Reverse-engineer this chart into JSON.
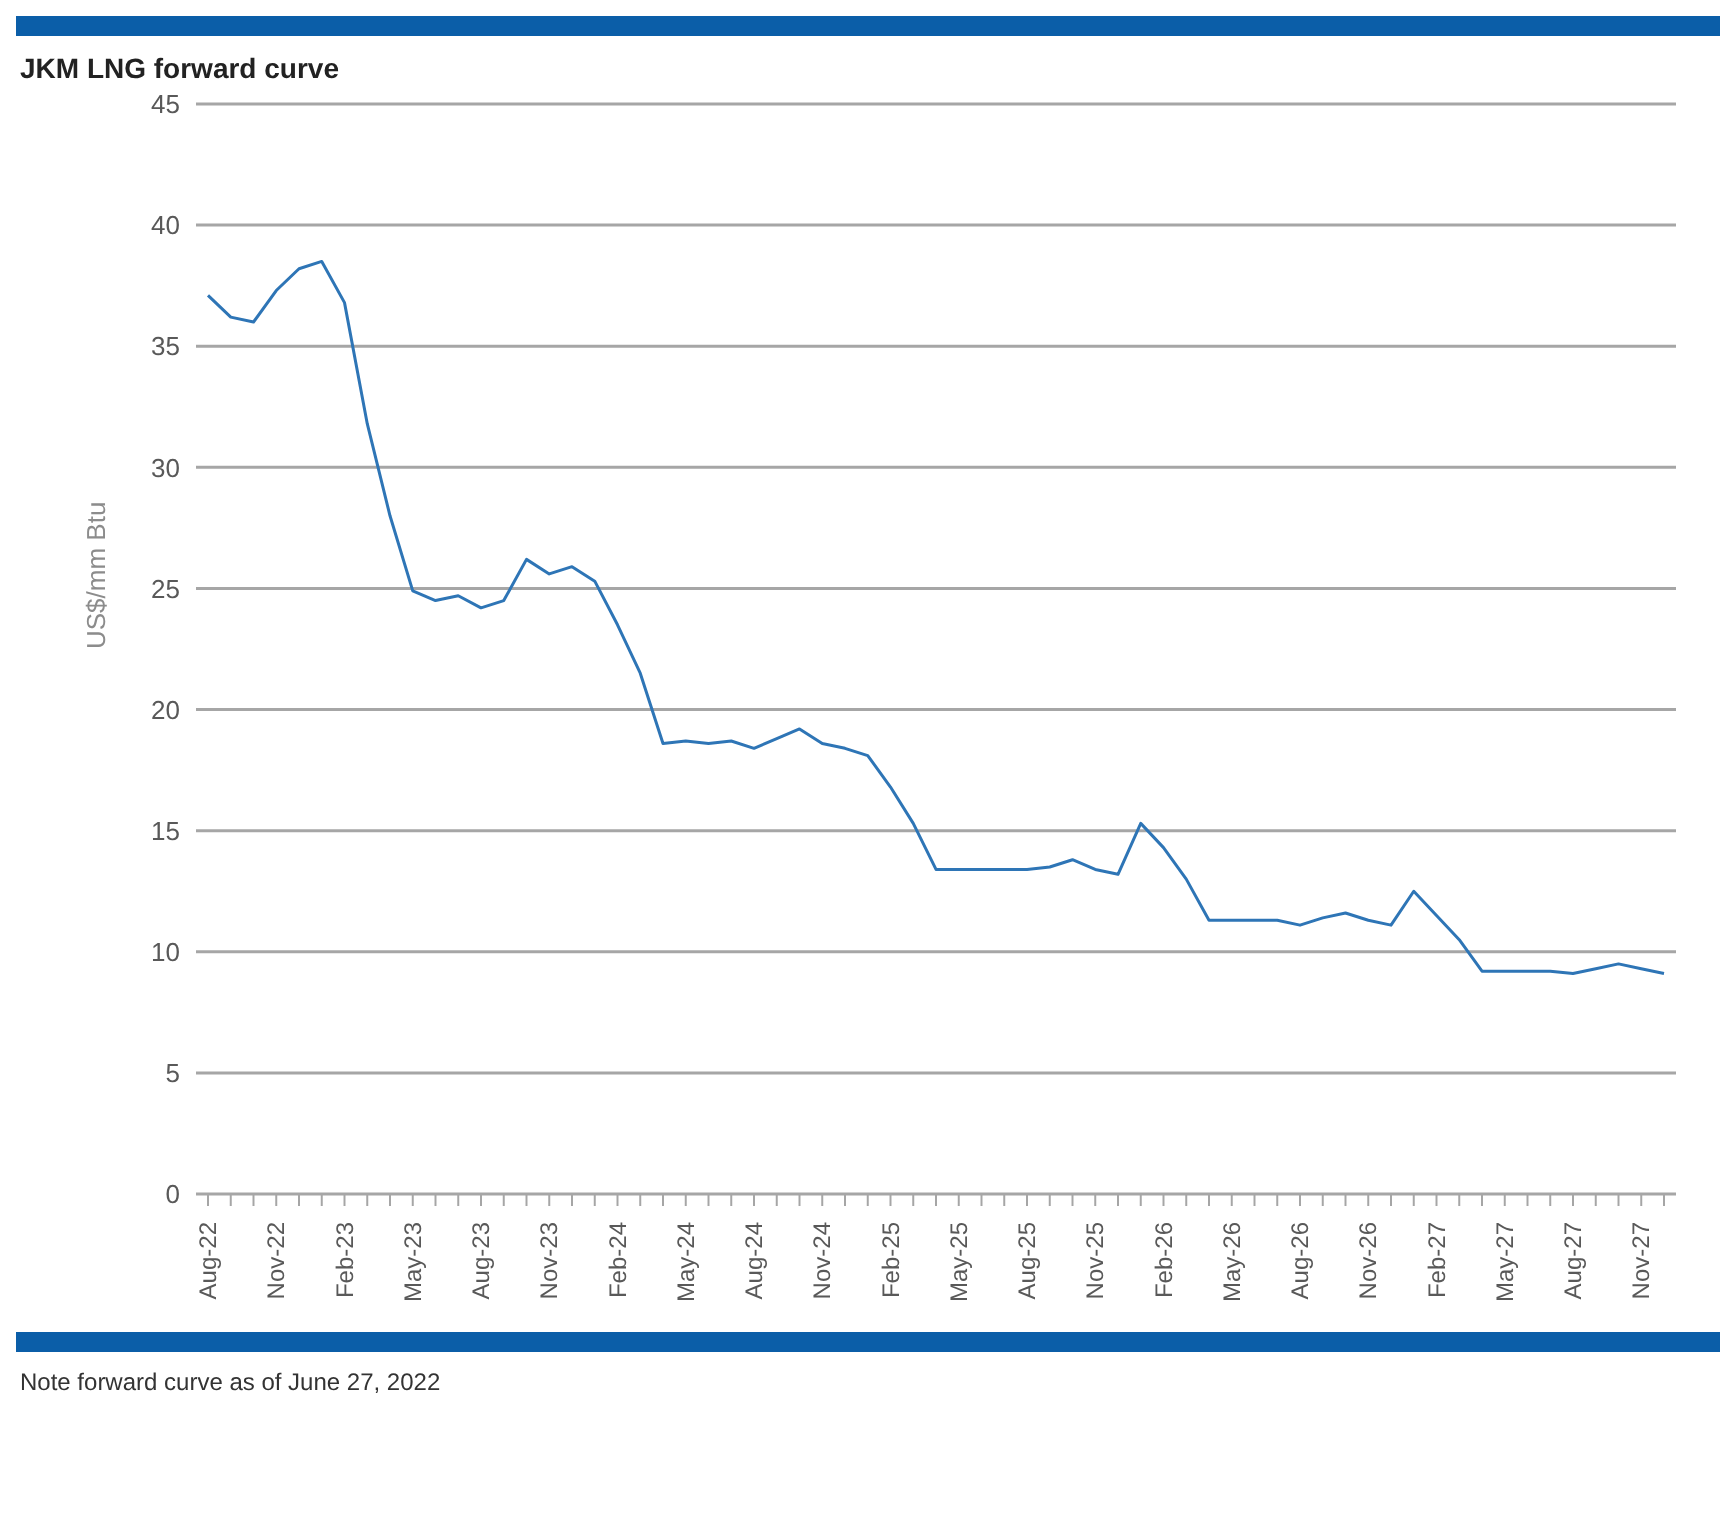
{
  "chart_data": {
    "type": "line",
    "title": "JKM LNG forward curve",
    "ylabel": "US$/mm Btu",
    "categories": [
      "Aug-22",
      null,
      null,
      "Nov-22",
      null,
      null,
      "Feb-23",
      null,
      null,
      "May-23",
      null,
      null,
      "Aug-23",
      null,
      null,
      "Nov-23",
      null,
      null,
      "Feb-24",
      null,
      null,
      "May-24",
      null,
      null,
      "Aug-24",
      null,
      null,
      "Nov-24",
      null,
      null,
      "Feb-25",
      null,
      null,
      "May-25",
      null,
      null,
      "Aug-25",
      null,
      null,
      "Nov-25",
      null,
      null,
      "Feb-26",
      null,
      null,
      "May-26",
      null,
      null,
      "Aug-26",
      null,
      null,
      "Nov-26",
      null,
      null,
      "Feb-27",
      null,
      null,
      "May-27",
      null,
      null,
      "Aug-27",
      null,
      null,
      "Nov-27",
      null
    ],
    "series": [
      {
        "color": "#2e75b6",
        "values": [
          37.1,
          36.2,
          36.0,
          37.3,
          38.2,
          38.5,
          36.8,
          31.8,
          28.0,
          24.9,
          24.5,
          24.7,
          24.2,
          24.5,
          26.2,
          25.6,
          25.9,
          25.3,
          23.5,
          21.5,
          18.6,
          18.7,
          18.6,
          18.7,
          18.4,
          18.8,
          19.2,
          18.6,
          18.4,
          18.1,
          16.8,
          15.3,
          13.4,
          13.4,
          13.4,
          13.4,
          13.4,
          13.5,
          13.8,
          13.4,
          13.2,
          15.3,
          14.3,
          13.0,
          11.3,
          11.3,
          11.3,
          11.3,
          11.1,
          11.4,
          11.6,
          11.3,
          11.1,
          12.5,
          11.5,
          10.5,
          9.2,
          9.2,
          9.2,
          9.2,
          9.1,
          9.3,
          9.5,
          9.3,
          9.1
        ]
      }
    ],
    "ylim": [
      0,
      45
    ],
    "yticks": [
      0,
      5,
      10,
      15,
      20,
      25,
      30,
      35,
      40,
      45
    ],
    "grid": "y",
    "marker": "none",
    "line_style": "solid",
    "legend": false,
    "annotations": [
      "Note forward curve as of June 27, 2022"
    ]
  }
}
